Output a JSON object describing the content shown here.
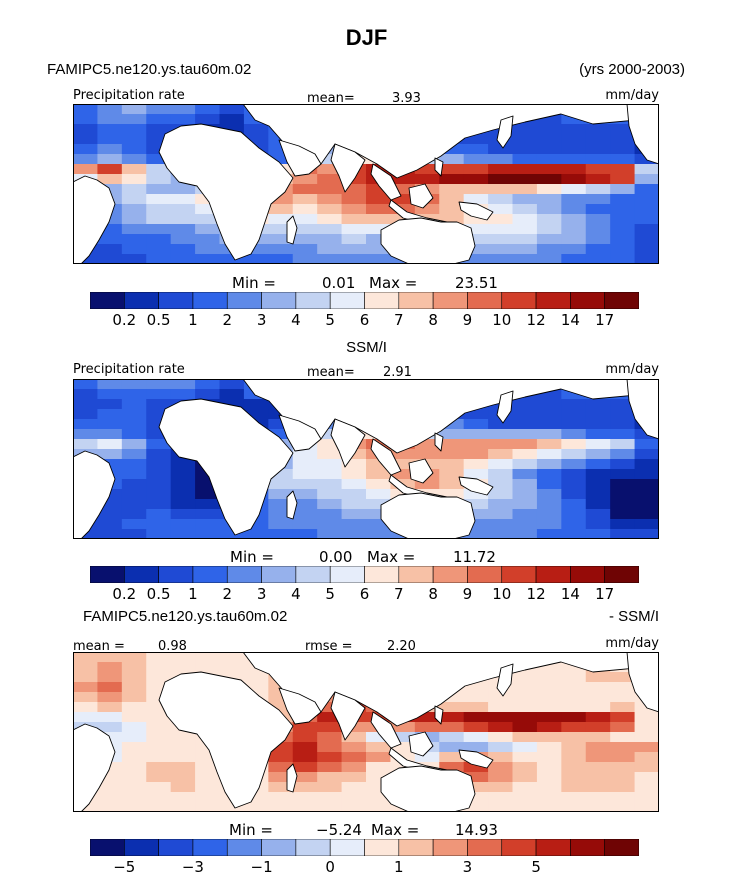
{
  "title": "DJF",
  "header": {
    "model_label": "FAMIPC5.ne120.ys.tau60m.02",
    "years_label": "(yrs 2000-2003)"
  },
  "colors": {
    "precip_scale": [
      "#08106e",
      "#0b2fb0",
      "#1f4ad4",
      "#2f64e8",
      "#5f8ae8",
      "#96b1ec",
      "#c3d3f2",
      "#e6edfa",
      "#fde7da",
      "#f7c1a6",
      "#ef9679",
      "#e36b50",
      "#d23f2a",
      "#b81e14",
      "#960b08",
      "#6f0404"
    ],
    "diff_scale": [
      "#08106e",
      "#0b2fb0",
      "#1f4ad4",
      "#2f64e8",
      "#5f8ae8",
      "#96b1ec",
      "#c3d3f2",
      "#e6edfa",
      "#fde7da",
      "#f7c1a6",
      "#ef9679",
      "#e36b50",
      "#d23f2a",
      "#b81e14",
      "#960b08",
      "#6f0404"
    ],
    "land": "#ffffff",
    "outline": "#000000"
  },
  "chart_data": [
    {
      "type": "heatmap",
      "name": "model",
      "left_label": "Precipitation rate",
      "mean_label": "mean=",
      "mean_value": "3.93",
      "units": "mm/day",
      "min_label": "Min =",
      "min_value": "0.01",
      "max_label": "Max =",
      "max_value": "23.51",
      "colorbar_levels": [
        "0.2",
        "0.5",
        "1",
        "2",
        "3",
        "4",
        "5",
        "6",
        "7",
        "8",
        "9",
        "10",
        "12",
        "14",
        "17"
      ],
      "grid_rows": [
        "3 4 5 4 4 3 2 3 3 4 5 6 6 5 4 3 3 3 2 2 3 4 3 3",
        "3 4 4 3 3 2 1 3 3 4 4 5 5 5 4 3 2 2 2 2 3 3 3 2",
        "2 3 3 2 2 1 1 2 3 4 4 5 5 4 3 3 2 2 2 2 2 2 2 2",
        "2 3 3 2 2 1 1 2 3 4 5 6 5 4 3 2 2 2 2 2 2 2 2 1",
        "3 4 3 2 1 1 1 2 3 4 5 7 6 5 4 3 3 2 2 2 2 2 2 1",
        "4 5 4 3 2 1 1 2 3 5 6 8 8 7 6 5 4 4 3 3 3 3 3 2",
        "10 12 9 6 4 3 3 5 8 11 10 12 13 13 12 12 12 13 13 13 13 12 12 6",
        "7 9 8 6 5 5 6 7 9 10 11 12 13 13 13 14 14 15 15 15 14 13 12 5",
        "4 5 6 5 5 6 7 8 10 11 11 11 12 11 10 9 9 9 9 8 7 6 5 3",
        "4 5 6 7 7 8 9 10 10 9 10 11 12 12 11 9 7 6 5 5 4 4 3 3",
        "3 4 5 6 6 7 8 9 9 8 9 10 11 11 10 9 8 7 6 5 4 3 3 3",
        "3 4 5 6 6 6 7 8 7 7 8 9 9 9 9 9 8 8 7 6 5 4 3 3",
        "2 3 4 4 4 5 5 6 6 6 6 7 7 7 7 7 7 7 7 6 5 4 3 2",
        "2 3 3 3 4 4 5 5 5 5 5 6 5 6 6 6 6 6 6 5 5 4 3 2",
        "2 2 3 3 3 4 4 4 4 4 5 5 5 5 5 5 5 5 5 4 4 3 3 2",
        "2 2 2 3 3 3 3 3 3 4 4 4 4 4 4 4 4 4 4 4 3 3 3 2"
      ]
    },
    {
      "type": "heatmap",
      "name": "observation",
      "panel_title": "SSM/I",
      "left_label": "Precipitation rate",
      "mean_label": "mean=",
      "mean_value": "2.91",
      "units": "mm/day",
      "min_label": "Min =",
      "min_value": "0.00",
      "max_label": "Max =",
      "max_value": "11.72",
      "colorbar_levels": [
        "0.2",
        "0.5",
        "1",
        "2",
        "3",
        "4",
        "5",
        "6",
        "7",
        "8",
        "9",
        "10",
        "12",
        "14",
        "17"
      ],
      "grid_rows": [
        "3 4 4 4 4 3 2 3 3 4 4 4 4 4 3 3 3 3 2 2 3 3 3 3",
        "2 3 3 3 3 2 1 3 3 4 4 4 4 4 3 3 2 2 2 2 3 3 3 2",
        "2 2 3 2 2 1 1 1 1 2 3 4 4 4 3 3 2 2 2 2 2 2 2 2",
        "2 3 3 2 1 1 1 1 1 2 4 5 5 4 3 2 2 2 2 2 2 2 2 1",
        "3 3 3 2 1 1 1 1 2 3 4 6 6 5 4 4 3 2 2 2 2 2 2 1",
        "4 4 3 2 2 1 1 2 3 4 6 8 8 7 6 5 5 5 5 5 4 3 3 2",
        "6 7 5 3 2 1 1 3 5 7 8 10 11 11 10 10 10 10 10 9 8 7 6 3",
        "5 5 4 2 1 0 0 3 5 7 8 9 10 10 10 10 10 9 8 7 6 5 4 2",
        "3 3 3 2 1 0 0 2 5 7 7 8 9 9 9 9 8 7 6 5 4 3 2 1",
        "3 3 3 2 1 0 0 4 6 7 7 8 9 10 10 9 7 6 4 3 2 1 1 1",
        "2 3 2 2 1 0 0 4 6 6 6 7 8 9 10 9 8 6 5 3 2 1 0 0",
        "2 2 2 2 1 0 0 3 5 5 6 6 7 8 8 8 7 6 5 4 2 1 0 0",
        "2 2 2 2 1 1 1 3 4 4 5 6 6 6 6 6 6 5 5 4 3 1 0 0",
        "2 2 2 3 2 2 2 3 4 4 4 5 5 5 5 5 5 5 4 4 3 2 0 0",
        "2 2 3 3 3 3 3 3 4 4 4 4 4 5 5 5 4 4 4 4 3 2 1 1",
        "2 2 2 3 3 3 3 3 3 3 4 4 4 4 4 4 4 4 4 3 3 3 2 2"
      ]
    },
    {
      "type": "heatmap",
      "name": "difference",
      "panel_title_left": "FAMIPC5.ne120.ys.tau60m.02",
      "panel_title_right": "- SSM/I",
      "mean_label": "mean =",
      "mean_value": "0.98",
      "rmse_label": "rmse =",
      "rmse_value": "2.20",
      "units": "mm/day",
      "min_label": "Min =",
      "min_value": "−5.24",
      "max_label": "Max =",
      "max_value": "14.93",
      "colorbar_levels": [
        "−5",
        "−4",
        "−3",
        "−2",
        "−1",
        "−0.5",
        "0",
        "0.5",
        "1",
        "2",
        "3",
        "4",
        "5",
        "6",
        "7"
      ],
      "colorbar_tick_labels": [
        "−5",
        "−3",
        "−1",
        "0",
        "1",
        "3",
        "5"
      ],
      "grid_rows": [
        "9 9 9 8 8 8 8 8 8 9 10 10 9 9 8 8 8 8 8 8 8 8 8 8",
        "9 10 9 8 8 8 8 8 8 9 9 9 9 8 8 8 8 8 8 8 8 9 8 8",
        "9 10 9 8 8 8 8 8 9 9 9 8 8 8 8 8 8 8 8 8 8 9 9 8",
        "10 11 9 8 8 8 8 8 9 9 10 9 8 8 8 8 8 8 8 8 8 8 8 8",
        "9 10 9 8 8 8 8 8 9 9 10 11 9 8 8 8 8 8 8 8 8 8 8 8",
        "8 9 8 8 8 8 8 8 9 10 11 12 11 10 9 9 9 8 8 8 8 8 9 8",
        "7 7 8 8 8 8 8 8 9 11 13 12 12 13 13 13 14 14 14 14 14 13 12 8",
        "6 6 7 8 8 8 8 8 10 12 12 10 10 10 11 11 12 13 14 13 12 12 11 8",
        "6 7 7 8 8 8 8 8 11 12 11 9 7 6 5 6 7 8 9 9 9 9 8 8",
        "7 7 8 8 8 8 8 8 12 13 11 10 9 8 6 5 5 6 7 8 9 10 10 10",
        "7 7 8 8 8 8 8 8 12 13 12 11 10 8 7 9 10 9 8 8 9 10 10 9",
        "8 8 8 9 9 8 8 8 11 12 11 10 8 8 8 11 12 10 9 8 9 9 9 9",
        "8 8 8 9 9 8 8 8 10 10 9 9 8 8 8 10 11 10 9 8 9 9 9 8",
        "7 8 8 8 9 8 8 8 9 9 9 8 8 8 8 9 9 9 8 8 9 9 9 8",
        "8 8 8 8 8 8 8 8 8 8 8 8 8 8 8 8 8 8 8 8 8 8 8 8",
        "8 8 8 8 8 8 8 8 8 8 8 8 8 8 8 8 8 8 8 8 8 8 8 8"
      ]
    }
  ]
}
